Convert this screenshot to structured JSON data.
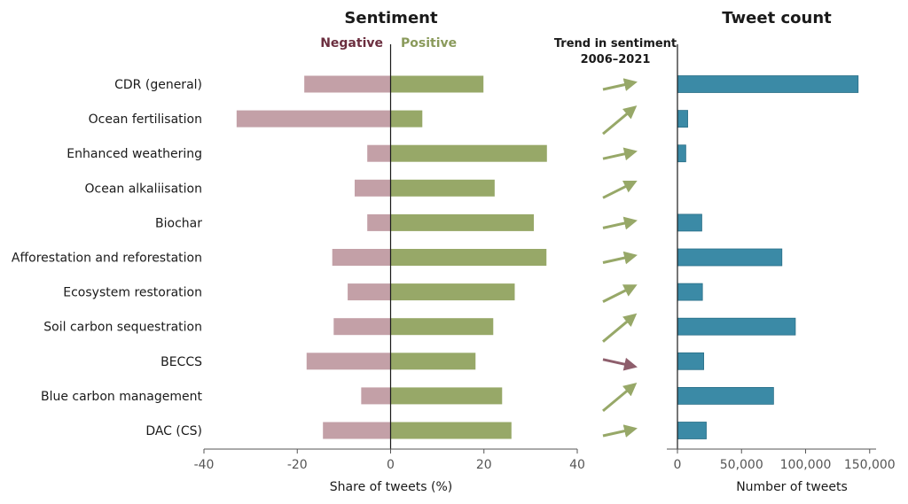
{
  "chart_data": [
    {
      "type": "bar",
      "title": "Sentiment",
      "xlabel": "Share of tweets (%)",
      "xlim": [
        -40,
        40
      ],
      "xticks": [
        -40,
        -20,
        0,
        20,
        40
      ],
      "legend": [
        {
          "label": "Negative",
          "color": "#6b2e3f"
        },
        {
          "label": "Positive",
          "color": "#8a9a5b"
        }
      ],
      "categories": [
        "CDR (general)",
        "Ocean fertilisation",
        "Enhanced weathering",
        "Ocean alkaliisation",
        "Biochar",
        "Afforestation and reforestation",
        "Ecosystem restoration",
        "Soil carbon sequestration",
        "BECCS",
        "Blue carbon management",
        "DAC (CS)"
      ],
      "series": [
        {
          "name": "Negative",
          "color": "#c3a0a7",
          "values": [
            -18.5,
            -33,
            -5,
            -7.7,
            -5,
            -12.5,
            -9.2,
            -12.2,
            -18,
            -6.3,
            -14.5
          ]
        },
        {
          "name": "Positive",
          "color": "#97a868",
          "values": [
            19.9,
            6.8,
            33.5,
            22.3,
            30.7,
            33.4,
            26.6,
            22,
            18.2,
            23.9,
            25.9
          ]
        }
      ]
    },
    {
      "type": "arrows",
      "title_lines": [
        "Trend in sentiment",
        "2006–2021"
      ],
      "categories": [
        "CDR (general)",
        "Ocean fertilisation",
        "Enhanced weathering",
        "Ocean alkaliisation",
        "Biochar",
        "Afforestation and reforestation",
        "Ecosystem restoration",
        "Soil carbon sequestration",
        "BECCS",
        "Blue carbon management",
        "DAC (CS)"
      ],
      "trend": [
        "up-slight",
        "up-strong",
        "up-slight",
        "up-medium",
        "up-slight",
        "up-slight",
        "up-medium",
        "up-strong",
        "down-slight",
        "up-strong",
        "up-slight"
      ],
      "colors": {
        "up": "#97a868",
        "down": "#8e5e6c"
      }
    },
    {
      "type": "bar",
      "title": "Tweet count",
      "xlabel": "Number of tweets",
      "xlim": [
        0,
        155000
      ],
      "xticks": [
        0,
        50000,
        100000,
        150000
      ],
      "xtick_labels": [
        "0",
        "50,000",
        "100,000",
        "150,000"
      ],
      "color": "#3b8aa6",
      "categories": [
        "CDR (general)",
        "Ocean fertilisation",
        "Enhanced weathering",
        "Ocean alkaliisation",
        "Biochar",
        "Afforestation and reforestation",
        "Ecosystem restoration",
        "Soil carbon sequestration",
        "BECCS",
        "Blue carbon management",
        "DAC (CS)"
      ],
      "values": [
        141000,
        8000,
        6500,
        0,
        19000,
        81500,
        19500,
        92000,
        20500,
        75000,
        22500
      ]
    }
  ]
}
